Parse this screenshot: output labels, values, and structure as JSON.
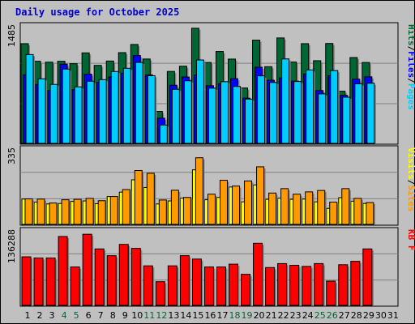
{
  "chart_data": {
    "type": "bar",
    "title": "Daily usage for October 2025",
    "colors": {
      "hits": "#006633",
      "files": "#0000ff",
      "pages": "#00ccff",
      "visits": "#ffff00",
      "sites": "#ff9900",
      "kbf": "#ff0000",
      "weekend_label": "#006633",
      "day_label": "#000000",
      "background": "#c0c0c0"
    },
    "x": [
      "1",
      "2",
      "3",
      "4",
      "5",
      "6",
      "7",
      "8",
      "9",
      "10",
      "11",
      "12",
      "13",
      "14",
      "15",
      "16",
      "17",
      "18",
      "19",
      "20",
      "21",
      "22",
      "23",
      "24",
      "25",
      "26",
      "27",
      "28",
      "29",
      "30",
      "31"
    ],
    "weekend_days": [
      "4",
      "5",
      "11",
      "12",
      "18",
      "19",
      "25",
      "26"
    ],
    "panels": [
      {
        "id": "hits_files_pages",
        "ymax_label": "1485",
        "ylim": [
          0,
          1485
        ],
        "side_label": [
          "Pages",
          "Files",
          "Hits"
        ],
        "side_colors": [
          "#00ccff",
          "#0000ff",
          "#006633"
        ],
        "series": [
          {
            "name": "Hits",
            "color": "#006633",
            "values": [
              1235,
              1017,
              1006,
              1017,
              987,
              1121,
              966,
              1020,
              1124,
              1225,
              1045,
              396,
              891,
              956,
              1426,
              1002,
              1138,
              1044,
              686,
              1279,
              950,
              1306,
              1008,
              1235,
              1024,
              1237,
              646,
              1063,
              1002,
              null,
              null
            ]
          },
          {
            "name": "Files",
            "color": "#0000ff",
            "values": [
              850,
              729,
              656,
              981,
              665,
              858,
              756,
              823,
              870,
              1088,
              848,
              312,
              720,
              822,
              847,
              714,
              739,
              801,
              560,
              943,
              782,
              811,
              771,
              860,
              654,
              838,
              595,
              796,
              824,
              null,
              null
            ]
          },
          {
            "name": "Pages",
            "color": "#00ccff",
            "values": [
              1100,
              800,
              730,
              920,
              700,
              770,
              790,
              890,
              930,
              1003,
              838,
              227,
              670,
              775,
              1033,
              684,
              764,
              705,
              548,
              836,
              754,
              1046,
              766,
              910,
              613,
              902,
              572,
              738,
              745,
              null,
              null
            ]
          }
        ]
      },
      {
        "id": "visits_sites",
        "ymax_label": "335",
        "ylim": [
          0,
          335
        ],
        "side_label": [
          "Sites",
          "Visits"
        ],
        "side_colors": [
          "#ff9900",
          "#ffff00"
        ],
        "series": [
          {
            "name": "Visits",
            "color": "#ffff00",
            "values": [
              109,
              96,
              88,
              90,
              99,
              101,
              89,
              120,
              139,
              192,
              159,
              88,
              101,
              113,
              235,
              106,
              116,
              161,
              97,
              170,
              108,
              113,
              108,
              109,
              97,
              69,
              115,
              100,
              90,
              null,
              null
            ]
          },
          {
            "name": "Sites",
            "color": "#ff9900",
            "values": [
              110,
              109,
              92,
              106,
              108,
              112,
              102,
              120,
              150,
              232,
              220,
              105,
              147,
              116,
              287,
              130,
              190,
              165,
              187,
              248,
              135,
              154,
              130,
              140,
              146,
              96,
              154,
              112,
              94,
              null,
              null
            ]
          }
        ]
      },
      {
        "id": "kbf",
        "ymax_label": "136288",
        "ylim": [
          0,
          136288
        ],
        "side_label": [
          "KB F"
        ],
        "side_colors": [
          "#ff0000"
        ],
        "series": [
          {
            "name": "KB F",
            "color": "#ff0000",
            "values": [
              86000,
              84000,
              84000,
              122000,
              68000,
              126000,
              100000,
              88000,
              108000,
              101000,
              70000,
              42000,
              70000,
              88000,
              82000,
              68000,
              68000,
              73000,
              55000,
              110000,
              67000,
              74000,
              71000,
              69000,
              74000,
              43000,
              72000,
              78000,
              100000,
              null,
              null
            ]
          }
        ]
      }
    ]
  }
}
